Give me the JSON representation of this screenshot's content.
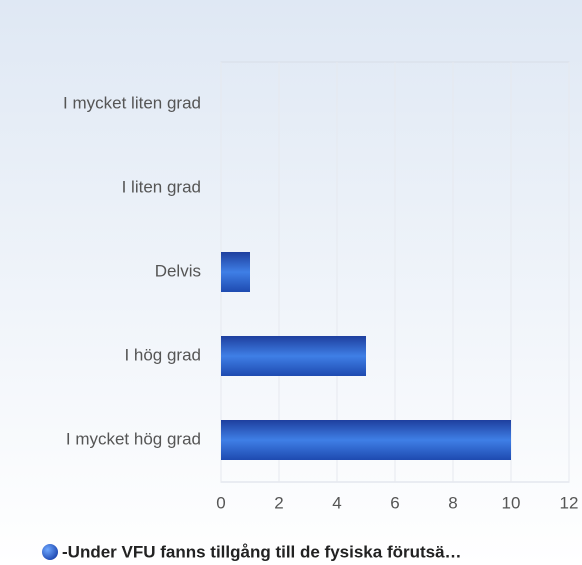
{
  "chart_data": {
    "type": "hbar",
    "categories": [
      "I mycket liten grad",
      "I liten grad",
      "Delvis",
      "I hög grad",
      "I mycket hög grad"
    ],
    "series": [
      {
        "name": "-Under VFU fanns tillgång till de fysiska förutsä…",
        "color": "#2a5cc8",
        "values": [
          0,
          0,
          1,
          5,
          10
        ]
      }
    ],
    "xlim": [
      0,
      12
    ],
    "xticks": [
      0,
      2,
      4,
      6,
      8,
      10,
      12
    ],
    "grid": true,
    "legend": "bottom"
  }
}
